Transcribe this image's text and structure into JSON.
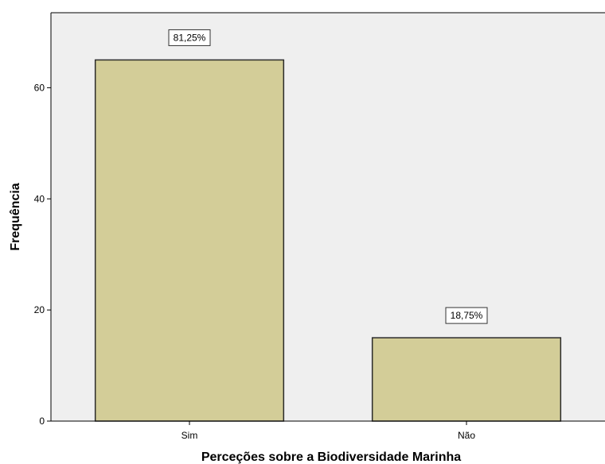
{
  "chart_data": {
    "type": "bar",
    "title": "",
    "xlabel": "Perceções sobre a Biodiversidade Marinha",
    "ylabel": "Frequência",
    "categories": [
      "Sim",
      "Não"
    ],
    "values": [
      65,
      15
    ],
    "data_labels": [
      "81,25%",
      "18,75%"
    ],
    "ylim": [
      0,
      73.5
    ],
    "yticks": [
      0,
      20,
      40,
      60
    ],
    "grid": false,
    "legend": "none",
    "colors": {
      "bar_fill": "#d3cd98",
      "bar_stroke": "#2b2b2b",
      "plot_background": "#efefef",
      "axis": "#000000"
    }
  }
}
